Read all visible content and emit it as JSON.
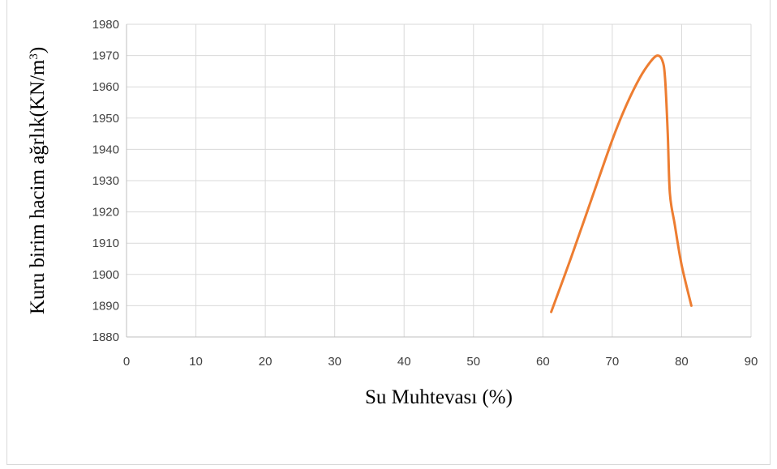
{
  "chart_data": {
    "type": "line",
    "xlabel": "Su Muhtevası (%)",
    "ylabel_main": "Kuru birim hacim ağrlık(KN/m",
    "ylabel_sup": "3",
    "ylabel_close": ")",
    "xlim": [
      0,
      90
    ],
    "ylim": [
      1880,
      1980
    ],
    "xticks": [
      0,
      10,
      20,
      30,
      40,
      50,
      60,
      70,
      80,
      90
    ],
    "yticks": [
      1880,
      1890,
      1900,
      1910,
      1920,
      1930,
      1940,
      1950,
      1960,
      1970,
      1980
    ],
    "grid": true,
    "legend": "none",
    "series": [
      {
        "color": "#ED7D31",
        "points": [
          [
            61.2,
            1888
          ],
          [
            64,
            1905
          ],
          [
            67,
            1924
          ],
          [
            70,
            1943
          ],
          [
            72,
            1954
          ],
          [
            74,
            1963
          ],
          [
            75.5,
            1968
          ],
          [
            76.5,
            1970
          ],
          [
            77.2,
            1968.5
          ],
          [
            77.6,
            1963
          ],
          [
            78.0,
            1945
          ],
          [
            78.3,
            1926
          ],
          [
            79,
            1916
          ],
          [
            80,
            1903
          ],
          [
            81.4,
            1890
          ]
        ]
      }
    ]
  }
}
